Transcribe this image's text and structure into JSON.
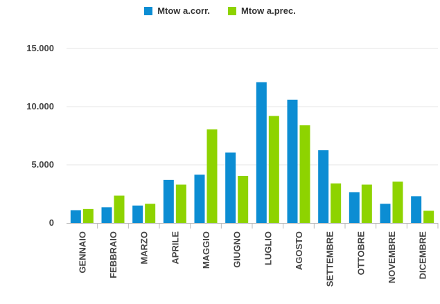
{
  "chart_data": {
    "type": "bar",
    "title": "",
    "xlabel": "",
    "ylabel": "",
    "categories": [
      "GENNAIO",
      "FEBBRAIO",
      "MARZO",
      "APRILE",
      "MAGGIO",
      "GIUGNO",
      "LUGLIO",
      "AGOSTO",
      "SETTEMBRE",
      "OTTOBRE",
      "NOVEMBRE",
      "DICEMBRE"
    ],
    "series": [
      {
        "name": "Mtow a.corr.",
        "color": "#0c8dd3",
        "values": [
          1100,
          1350,
          1500,
          3700,
          4150,
          6050,
          12100,
          10600,
          6250,
          2650,
          1650,
          2300
        ]
      },
      {
        "name": "Mtow a.prec.",
        "color": "#8ed300",
        "values": [
          1200,
          2350,
          1650,
          3300,
          8050,
          4050,
          9200,
          8400,
          3400,
          3300,
          3550,
          1050
        ]
      }
    ],
    "ylim": [
      0,
      15000
    ],
    "yticks": [
      0,
      5000,
      10000,
      15000
    ],
    "ytick_labels": [
      "0",
      "5.000",
      "10.000",
      "15.000"
    ],
    "grid": true,
    "legend_position": "top-center"
  }
}
